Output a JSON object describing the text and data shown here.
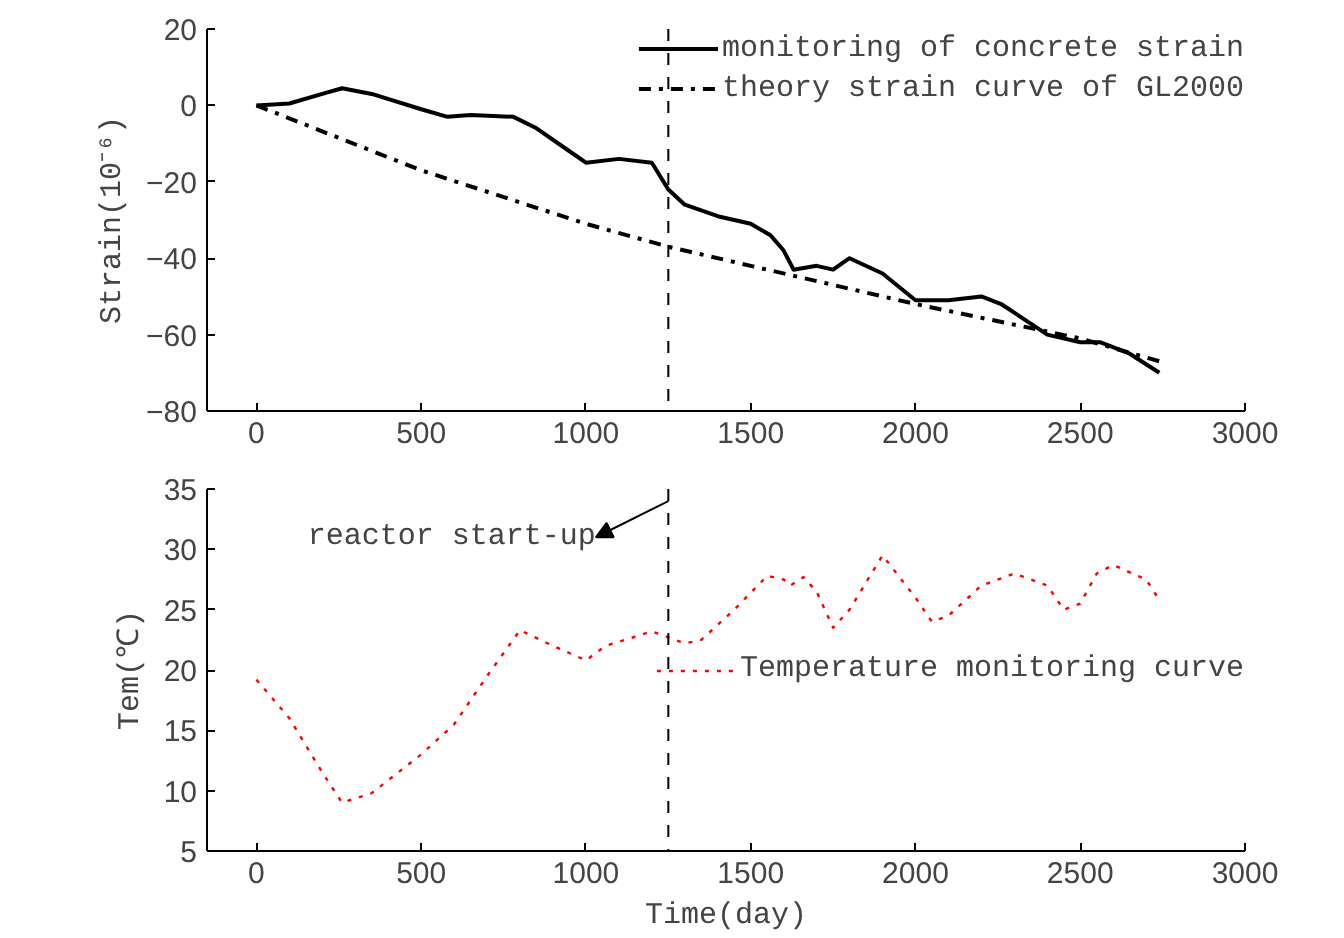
{
  "chart_data": [
    {
      "type": "line",
      "ylabel": "Strain(10⁻⁶)",
      "xlim": [
        -150,
        3000
      ],
      "xticks": [
        0,
        500,
        1000,
        1500,
        2000,
        2500,
        3000
      ],
      "ylim": [
        -80,
        20
      ],
      "yticks": [
        -80,
        -60,
        -40,
        -20,
        0,
        20
      ],
      "grid": false,
      "legend": "top right",
      "series": [
        {
          "name": "monitoring of concrete strain",
          "color": "#000000",
          "line_style": "solid",
          "x": [
            0,
            100,
            200,
            260,
            350,
            500,
            580,
            650,
            780,
            850,
            950,
            1000,
            1100,
            1200,
            1250,
            1300,
            1400,
            1500,
            1560,
            1600,
            1630,
            1700,
            1750,
            1800,
            1900,
            2000,
            2100,
            2200,
            2260,
            2400,
            2500,
            2560,
            2650,
            2740
          ],
          "values": [
            0,
            0.5,
            3,
            4.5,
            3,
            -1,
            -3,
            -2.5,
            -3,
            -6,
            -12,
            -15,
            -14,
            -15,
            -22,
            -26,
            -29,
            -31,
            -34,
            -38,
            -43,
            -42,
            -43,
            -40,
            -44,
            -51,
            -51,
            -50,
            -52,
            -60,
            -62,
            -62,
            -65,
            -70
          ]
        },
        {
          "name": "theory strain curve of GL2000",
          "color": "#000000",
          "line_style": "dashdot",
          "x": [
            0,
            500,
            1000,
            1250,
            1500,
            2000,
            2500,
            2740
          ],
          "values": [
            0,
            -17,
            -31,
            -37,
            -42,
            -52,
            -61,
            -67
          ]
        }
      ],
      "ref_lines": [
        {
          "axis": "x",
          "value": 1250,
          "label": null,
          "line_style": "dashed",
          "color": "#000000"
        }
      ]
    },
    {
      "type": "line",
      "xlabel": "Time(day)",
      "ylabel": "Tem(℃)",
      "xlim": [
        -150,
        3000
      ],
      "xticks": [
        0,
        500,
        1000,
        1500,
        2000,
        2500,
        3000
      ],
      "ylim": [
        5,
        35
      ],
      "yticks": [
        5,
        10,
        15,
        20,
        25,
        30,
        35
      ],
      "grid": false,
      "legend": "right",
      "series": [
        {
          "name": "Temperature monitoring curve",
          "color": "#ff0000",
          "line_style": "dotted",
          "x": [
            0,
            100,
            200,
            260,
            350,
            500,
            600,
            700,
            800,
            900,
            1000,
            1060,
            1200,
            1300,
            1350,
            1450,
            1550,
            1600,
            1620,
            1660,
            1700,
            1750,
            1800,
            1900,
            2000,
            2050,
            2100,
            2200,
            2300,
            2400,
            2450,
            2500,
            2550,
            2600,
            2700,
            2740
          ],
          "values": [
            19.2,
            16,
            11.5,
            9,
            9.8,
            13,
            15.5,
            19.5,
            23.3,
            22,
            20.8,
            22,
            23.2,
            22.2,
            22.5,
            25,
            27.8,
            27.5,
            27,
            27.7,
            26.5,
            23.5,
            25,
            29.5,
            26,
            24,
            24.5,
            27,
            28,
            27,
            25,
            25.5,
            28,
            28.7,
            27.5,
            25.8
          ]
        }
      ],
      "ref_lines": [
        {
          "axis": "x",
          "value": 1250,
          "label": null,
          "line_style": "dashed",
          "color": "#000000"
        }
      ],
      "annotations": [
        {
          "text": "reactor start-up",
          "x": 1250,
          "y": 34
        }
      ]
    }
  ]
}
